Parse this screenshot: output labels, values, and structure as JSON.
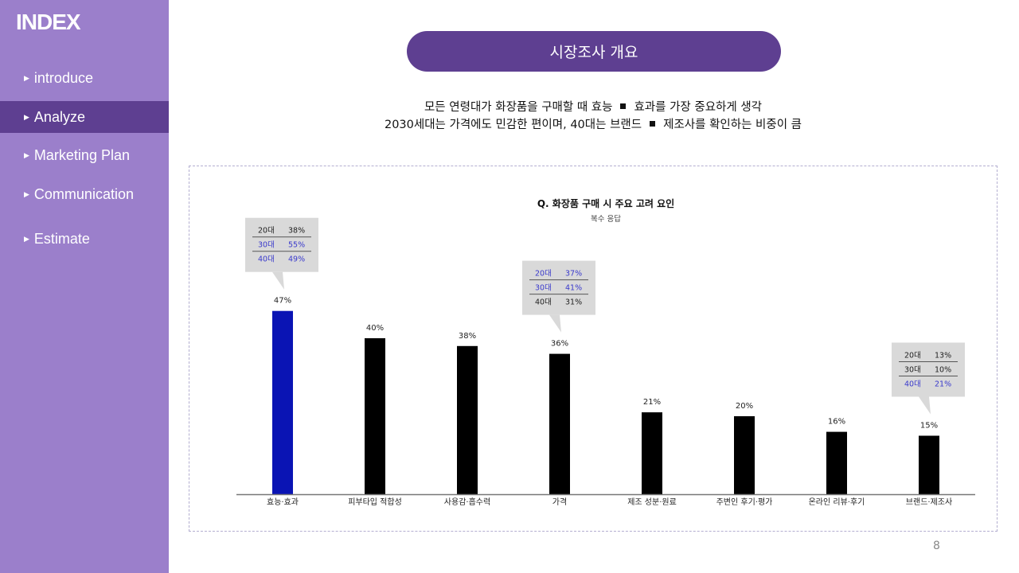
{
  "sidebar": {
    "title": "INDEX",
    "items": [
      {
        "label": "introduce",
        "active": false
      },
      {
        "label": "Analyze",
        "active": true
      },
      {
        "label": "Marketing Plan",
        "active": false
      },
      {
        "label": "Communication",
        "active": false
      },
      {
        "label": "Estimate",
        "active": false
      }
    ]
  },
  "header": {
    "title": "시장조사 개요"
  },
  "summary": {
    "line1_a": "모든 연령대가 화장품을 구매할 때 효능",
    "line1_b": "효과를 가장 중요하게 생각",
    "line2_a": "2030세대는 가격에도 민감한 편이며, 40대는 브랜드",
    "line2_b": "제조사를 확인하는 비중이 큼"
  },
  "page_number": "8",
  "colors": {
    "accent": "#5e3f91",
    "sidebar": "#9b7fcb",
    "highlight_bar": "#0a14b4",
    "bar": "#000000",
    "callout_bg": "#d9d9d9",
    "callout_highlight_text": "#3a3acc"
  },
  "chart_data": {
    "type": "bar",
    "title": "Q. 화장품 구매 시 주요 고려 요인",
    "subtitle": "복수 응답",
    "categories": [
      "효능·효과",
      "피부타입 적합성",
      "사용감·흡수력",
      "가격",
      "제조 성분·원료",
      "주변인 후기·평가",
      "온라인 리뷰·후기",
      "브랜드·제조사"
    ],
    "values": [
      47,
      40,
      38,
      36,
      21,
      20,
      16,
      15
    ],
    "value_labels": [
      "47%",
      "40%",
      "38%",
      "36%",
      "21%",
      "20%",
      "16%",
      "15%"
    ],
    "highlight_index": 0,
    "ylim": [
      0,
      50
    ],
    "grid": false,
    "callouts": [
      {
        "category_index": 0,
        "rows": [
          {
            "age": "20대",
            "value": "38%",
            "highlight": false
          },
          {
            "age": "30대",
            "value": "55%",
            "highlight": true
          },
          {
            "age": "40대",
            "value": "49%",
            "highlight": true
          }
        ]
      },
      {
        "category_index": 3,
        "rows": [
          {
            "age": "20대",
            "value": "37%",
            "highlight": true
          },
          {
            "age": "30대",
            "value": "41%",
            "highlight": true
          },
          {
            "age": "40대",
            "value": "31%",
            "highlight": false
          }
        ]
      },
      {
        "category_index": 7,
        "rows": [
          {
            "age": "20대",
            "value": "13%",
            "highlight": false
          },
          {
            "age": "30대",
            "value": "10%",
            "highlight": false
          },
          {
            "age": "40대",
            "value": "21%",
            "highlight": true
          }
        ]
      }
    ]
  }
}
